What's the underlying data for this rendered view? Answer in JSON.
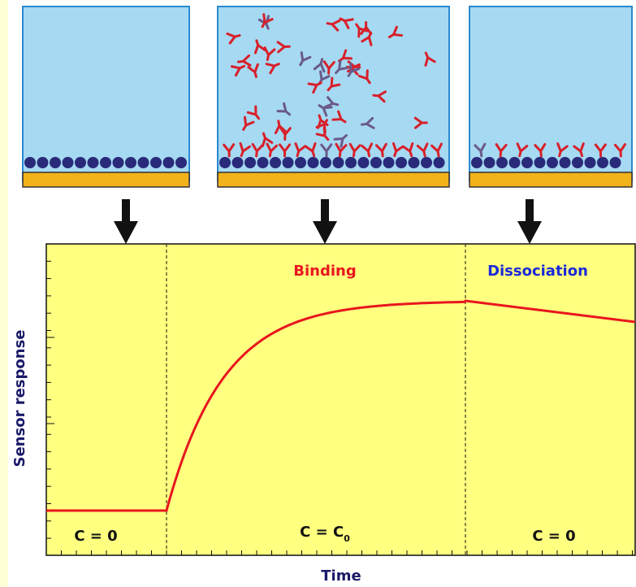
{
  "plot": {
    "phase_labels": [
      "Binding",
      "Dissociation"
    ],
    "concentration_labels": [
      {
        "text": "C = 0"
      },
      {
        "text": "C = C",
        "subscript": "0"
      },
      {
        "text": "C = 0"
      }
    ],
    "y_axis_label": "Sensor response",
    "x_axis_label": "Time"
  }
}
